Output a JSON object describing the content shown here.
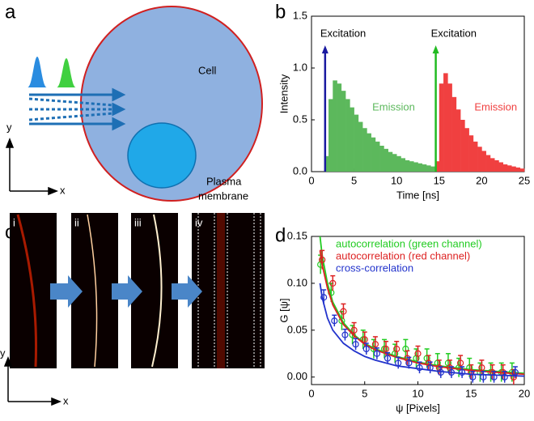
{
  "panels": {
    "a": "a",
    "b": "b",
    "c": "c",
    "d": "d"
  },
  "diagram_a": {
    "cell": "Cell",
    "membrane": [
      "Plasma",
      "membrane"
    ],
    "axis_y": "y",
    "axis_x": "x"
  },
  "images_c": {
    "frames": [
      "i",
      "ii",
      "iii",
      "iv"
    ],
    "axis_y": "y",
    "axis_x": "x"
  },
  "chart_data": [
    {
      "type": "bar",
      "ylabel": "Intensity",
      "xlabel": "Time [ns]",
      "xlim": [
        0,
        25
      ],
      "xticks": [
        0,
        5,
        10,
        15,
        20,
        25
      ],
      "ylim": [
        0,
        1.5
      ],
      "yticks": [
        {
          "value": 0,
          "label": "0.0"
        },
        0.5,
        {
          "value": 1,
          "label": "1.0"
        },
        1.5
      ],
      "annotations": [
        {
          "text": "Excitation",
          "x": 1.6,
          "color": "#1a1aa0"
        },
        {
          "text": "Excitation",
          "x": 14.6,
          "color": "#22bb22"
        }
      ],
      "series": [
        {
          "name": "Emission",
          "color": "#5cb85c",
          "x": [
            1.5,
            2,
            2.5,
            3,
            3.5,
            4,
            4.5,
            5,
            5.5,
            6,
            6.5,
            7,
            7.5,
            8,
            8.5,
            9,
            9.5,
            10,
            10.5,
            11,
            11.5,
            12,
            12.5,
            13,
            13.5,
            14,
            14.5
          ],
          "values": [
            0.15,
            0.7,
            0.88,
            0.85,
            0.78,
            0.7,
            0.62,
            0.55,
            0.48,
            0.42,
            0.37,
            0.33,
            0.29,
            0.25,
            0.22,
            0.19,
            0.17,
            0.15,
            0.13,
            0.11,
            0.1,
            0.09,
            0.08,
            0.07,
            0.06,
            0.05,
            0.04
          ]
        },
        {
          "name": "Emission",
          "color": "#f04040",
          "x": [
            14.5,
            15,
            15.5,
            16,
            16.5,
            17,
            17.5,
            18,
            18.5,
            19,
            19.5,
            20,
            20.5,
            21,
            21.5,
            22,
            22.5,
            23,
            23.5,
            24,
            24.5
          ],
          "values": [
            0.1,
            0.85,
            0.95,
            0.85,
            0.72,
            0.6,
            0.5,
            0.42,
            0.35,
            0.29,
            0.24,
            0.2,
            0.16,
            0.13,
            0.11,
            0.09,
            0.07,
            0.06,
            0.05,
            0.04,
            0.03
          ]
        }
      ]
    },
    {
      "type": "scatter",
      "ylabel": "G [ψ]",
      "xlabel": "ψ [Pixels]",
      "xlim": [
        0,
        20
      ],
      "xticks": [
        0,
        5,
        10,
        15,
        20
      ],
      "ylim": [
        -0.008,
        0.15
      ],
      "yticks": [
        {
          "value": 0,
          "label": "0.00"
        },
        {
          "value": 0.05,
          "label": "0.05"
        },
        {
          "value": 0.1,
          "label": "0.10"
        },
        {
          "value": 0.15,
          "label": "0.15"
        }
      ],
      "x": [
        1,
        2,
        3,
        4,
        5,
        6,
        7,
        8,
        9,
        10,
        11,
        12,
        13,
        14,
        15,
        16,
        17,
        18,
        19
      ],
      "fit_x": [
        0.8,
        1,
        1.5,
        2,
        3,
        4,
        5,
        6,
        8,
        10,
        12,
        15,
        20
      ],
      "series": [
        {
          "name": "autocorrelation (green channel)",
          "color": "#22cc22",
          "values": [
            0.12,
            0.09,
            0.06,
            0.045,
            0.04,
            0.03,
            0.03,
            0.025,
            0.03,
            0.02,
            0.02,
            0.015,
            0.015,
            0.01,
            0.01,
            0.005,
            0.005,
            0.005,
            0.005
          ],
          "errors": [
            0.01,
            0.01,
            0.01,
            0.01,
            0.01,
            0.01,
            0.01,
            0.01,
            0.01,
            0.01,
            0.01,
            0.01,
            0.01,
            0.01,
            0.01,
            0.01,
            0.01,
            0.01,
            0.01
          ],
          "fit": [
            0.15,
            0.13,
            0.1,
            0.08,
            0.058,
            0.045,
            0.036,
            0.03,
            0.022,
            0.016,
            0.012,
            0.008,
            0.004
          ]
        },
        {
          "name": "autocorrelation (red channel)",
          "color": "#dd2222",
          "values": [
            0.125,
            0.1,
            0.07,
            0.05,
            0.04,
            0.035,
            0.03,
            0.03,
            0.02,
            0.025,
            0.015,
            0.01,
            0.01,
            0.015,
            0.005,
            0.01,
            0.005,
            0.005,
            0
          ],
          "errors": [
            0.01,
            0.008,
            0.008,
            0.008,
            0.008,
            0.008,
            0.008,
            0.008,
            0.008,
            0.008,
            0.008,
            0.008,
            0.008,
            0.008,
            0.008,
            0.008,
            0.008,
            0.008,
            0.008
          ],
          "fit": [
            0.135,
            0.12,
            0.095,
            0.077,
            0.056,
            0.044,
            0.035,
            0.029,
            0.021,
            0.015,
            0.011,
            0.007,
            0.003
          ]
        },
        {
          "name": "cross-correlation",
          "color": "#2233cc",
          "values": [
            0.085,
            0.06,
            0.045,
            0.035,
            0.03,
            0.025,
            0.02,
            0.015,
            0.015,
            0.01,
            0.01,
            0.005,
            0.005,
            0.005,
            0,
            0,
            0,
            0,
            0.005
          ],
          "errors": [
            0.008,
            0.006,
            0.006,
            0.006,
            0.006,
            0.006,
            0.006,
            0.006,
            0.006,
            0.006,
            0.006,
            0.006,
            0.006,
            0.006,
            0.006,
            0.006,
            0.006,
            0.006,
            0.006
          ],
          "fit": [
            0.1,
            0.085,
            0.063,
            0.05,
            0.036,
            0.028,
            0.022,
            0.018,
            0.012,
            0.009,
            0.006,
            0.003,
            0.001
          ]
        }
      ]
    }
  ]
}
